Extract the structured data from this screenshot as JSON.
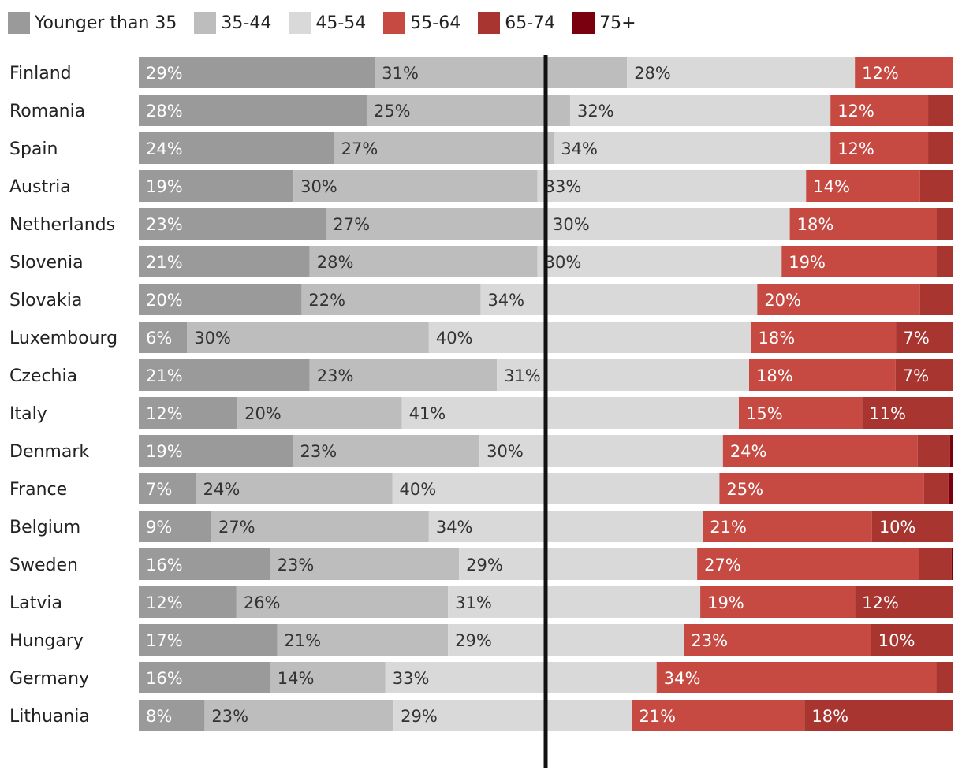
{
  "chart_data": {
    "type": "bar",
    "orientation": "horizontal",
    "stacked": true,
    "normalized_percent": true,
    "title": "",
    "xlabel": "",
    "ylabel": "",
    "legend_position": "top-left",
    "reference_line_at": 50,
    "legend": [
      {
        "name": "Younger than 35",
        "color": "#9a9a9a"
      },
      {
        "name": "35-44",
        "color": "#bdbdbd"
      },
      {
        "name": "45-54",
        "color": "#d9d9d9"
      },
      {
        "name": "55-64",
        "color": "#c74a42"
      },
      {
        "name": "65-74",
        "color": "#a83530"
      },
      {
        "name": "75+",
        "color": "#7a0010"
      }
    ],
    "categories": [
      "Finland",
      "Romania",
      "Spain",
      "Austria",
      "Netherlands",
      "Slovenia",
      "Slovakia",
      "Luxembourg",
      "Czechia",
      "Italy",
      "Denmark",
      "France",
      "Belgium",
      "Sweden",
      "Latvia",
      "Hungary",
      "Germany",
      "Lithuania"
    ],
    "series": [
      {
        "name": "Younger than 35",
        "values": [
          29,
          28,
          24,
          19,
          23,
          21,
          20,
          6,
          21,
          12,
          19,
          7,
          9,
          16,
          12,
          17,
          16,
          8
        ]
      },
      {
        "name": "35-44",
        "values": [
          31,
          25,
          27,
          30,
          27,
          28,
          22,
          30,
          23,
          20,
          23,
          24,
          27,
          23,
          26,
          21,
          14,
          23
        ]
      },
      {
        "name": "45-54",
        "values": [
          28,
          32,
          34,
          33,
          30,
          30,
          34,
          40,
          31,
          41,
          30,
          40,
          34,
          29,
          31,
          29,
          33,
          29
        ]
      },
      {
        "name": "55-64",
        "values": [
          12,
          12,
          12,
          14,
          18,
          19,
          20,
          18,
          18,
          15,
          24,
          25,
          21,
          27,
          19,
          23,
          34,
          21
        ]
      },
      {
        "name": "65-74",
        "values": [
          0,
          3,
          3,
          4,
          2,
          2,
          4,
          7,
          7,
          11,
          4,
          3,
          10,
          4,
          12,
          10,
          2,
          18
        ]
      },
      {
        "name": "75+",
        "values": [
          0,
          0,
          0,
          0,
          0,
          0,
          0,
          0,
          0,
          0,
          0.3,
          0.5,
          0,
          0.1,
          0,
          0,
          0,
          0
        ]
      }
    ],
    "data_labels": [
      [
        "29%",
        "31%",
        "28%",
        "12%",
        "",
        ""
      ],
      [
        "28%",
        "25%",
        "32%",
        "12%",
        "",
        ""
      ],
      [
        "24%",
        "27%",
        "34%",
        "12%",
        "",
        ""
      ],
      [
        "19%",
        "30%",
        "33%",
        "14%",
        "",
        ""
      ],
      [
        "23%",
        "27%",
        "30%",
        "18%",
        "",
        ""
      ],
      [
        "21%",
        "28%",
        "30%",
        "19%",
        "",
        ""
      ],
      [
        "20%",
        "22%",
        "34%",
        "20%",
        "",
        ""
      ],
      [
        "6%",
        "30%",
        "40%",
        "18%",
        "7%",
        ""
      ],
      [
        "21%",
        "23%",
        "31%",
        "18%",
        "7%",
        ""
      ],
      [
        "12%",
        "20%",
        "41%",
        "15%",
        "11%",
        ""
      ],
      [
        "19%",
        "23%",
        "30%",
        "24%",
        "",
        ""
      ],
      [
        "7%",
        "24%",
        "40%",
        "25%",
        "",
        ""
      ],
      [
        "9%",
        "27%",
        "34%",
        "21%",
        "10%",
        ""
      ],
      [
        "16%",
        "23%",
        "29%",
        "27%",
        "",
        ""
      ],
      [
        "12%",
        "26%",
        "31%",
        "19%",
        "12%",
        ""
      ],
      [
        "17%",
        "21%",
        "29%",
        "23%",
        "10%",
        ""
      ],
      [
        "16%",
        "14%",
        "33%",
        "34%",
        "",
        ""
      ],
      [
        "8%",
        "23%",
        "29%",
        "21%",
        "18%",
        ""
      ]
    ]
  }
}
